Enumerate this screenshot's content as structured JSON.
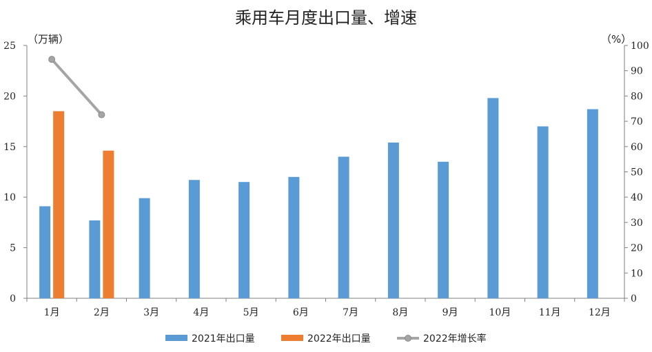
{
  "chart_data": {
    "type": "bar",
    "title": "乘用车月度出口量、增速",
    "left_unit_label": "（万辆）",
    "right_unit_label": "（%）",
    "categories": [
      "1月",
      "2月",
      "3月",
      "4月",
      "5月",
      "6月",
      "7月",
      "8月",
      "9月",
      "10月",
      "11月",
      "12月"
    ],
    "ylim": [
      0,
      25
    ],
    "y_ticks": [
      0,
      5,
      10,
      15,
      20,
      25
    ],
    "y2lim": [
      0,
      100
    ],
    "y2_ticks": [
      0,
      10,
      20,
      30,
      40,
      50,
      60,
      70,
      80,
      90,
      100
    ],
    "grid": false,
    "legend_position": "bottom",
    "series": [
      {
        "name": "2021年出口量",
        "type": "bar",
        "axis": "left",
        "color": "#5b9bd5",
        "values": [
          9.1,
          7.7,
          9.9,
          11.7,
          11.5,
          12.0,
          14.0,
          15.4,
          13.5,
          19.8,
          17.0,
          18.7
        ]
      },
      {
        "name": "2022年出口量",
        "type": "bar",
        "axis": "left",
        "color": "#ed7d31",
        "values": [
          18.5,
          14.6,
          null,
          null,
          null,
          null,
          null,
          null,
          null,
          null,
          null,
          null
        ]
      },
      {
        "name": "2022年增长率",
        "type": "line",
        "axis": "right",
        "color": "#a5a5a5",
        "values": [
          94.5,
          72.6,
          null,
          null,
          null,
          null,
          null,
          null,
          null,
          null,
          null,
          null
        ]
      }
    ]
  }
}
